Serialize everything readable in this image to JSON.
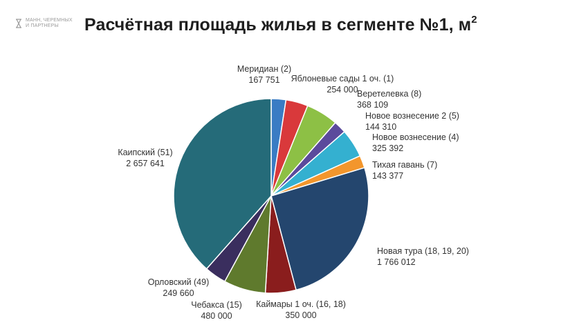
{
  "logo": {
    "line1": "МАНН, ЧЕРЕМНЫХ",
    "line2": "И ПАРТНЕРЫ"
  },
  "title": {
    "text": "Расчётная площадь жилья в сегменте №1, м",
    "superscript": "2"
  },
  "chart_data": {
    "type": "pie",
    "title": "Расчётная площадь жилья в сегменте №1, м²",
    "slices": [
      {
        "name": "Меридиан (2)",
        "value": 167751,
        "value_label": "167 751",
        "color": "#3a7cc4"
      },
      {
        "name": "Яблоневые сады 1 оч. (1)",
        "value": 254000,
        "value_label": "254 000",
        "color": "#d9393b"
      },
      {
        "name": "Веретелевка (8)",
        "value": 368109,
        "value_label": "368 109",
        "color": "#8dc045"
      },
      {
        "name": "Новое вознесение 2 (5)",
        "value": 144310,
        "value_label": "144 310",
        "color": "#5b4a9c"
      },
      {
        "name": "Новое вознесение  (4)",
        "value": 325392,
        "value_label": "325 392",
        "color": "#34b0d0"
      },
      {
        "name": "Тихая гавань (7)",
        "value": 143377,
        "value_label": "143 377",
        "color": "#f3962c"
      },
      {
        "name": "Новая тура (18, 19, 20)",
        "value": 1766012,
        "value_label": "1 766 012",
        "color": "#24466e"
      },
      {
        "name": "Каймары 1 оч. (16, 18)",
        "value": 350000,
        "value_label": "350 000",
        "color": "#8a1d1d"
      },
      {
        "name": "Чебакса (15)",
        "value": 480000,
        "value_label": "480 000",
        "color": "#5f7a2d"
      },
      {
        "name": "Орловский (49)",
        "value": 249660,
        "value_label": "249 660",
        "color": "#3a2e5e"
      },
      {
        "name": "Каипский (51)",
        "value": 2657641,
        "value_label": "2 657 641",
        "color": "#256b79"
      }
    ],
    "start_angle_deg": 0,
    "direction": "clockwise",
    "legend": "none",
    "labels": "outside"
  }
}
